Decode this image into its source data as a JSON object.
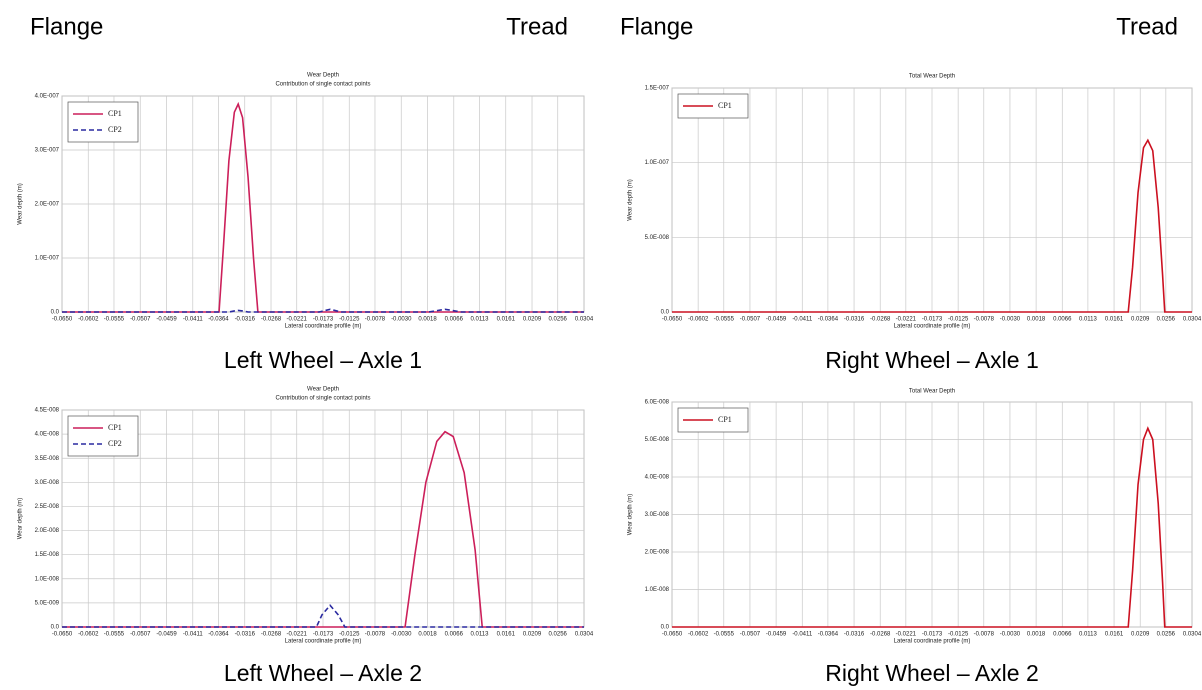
{
  "header_labels": [
    "Flange",
    "Tread",
    "Flange",
    "Tread"
  ],
  "chart_data": [
    {
      "type": "line",
      "title": "Wear Depth",
      "subtitle": "Contribution of single contact points",
      "caption": "Left Wheel – Axle 1",
      "xlabel": "Lateral coordinate profile (m)",
      "ylabel": "Wear depth (m)",
      "grid": true,
      "legend": "upper left",
      "x": [
        -0.065,
        -0.0363,
        -0.0355,
        -0.0345,
        -0.0335,
        -0.0328,
        -0.032,
        -0.031,
        -0.03,
        -0.0292,
        -0.018,
        -0.016,
        -0.014,
        0.002,
        0.005,
        0.008,
        0.0304
      ],
      "series": [
        {
          "name": "CP1",
          "color": "#cc1f5a",
          "style": "solid",
          "values": [
            0,
            0,
            1.2e-07,
            2.8e-07,
            3.7e-07,
            3.85e-07,
            3.6e-07,
            2.5e-07,
            1e-07,
            0,
            0,
            0,
            0,
            0,
            0,
            0,
            0
          ]
        },
        {
          "name": "CP2",
          "color": "#2a2aa0",
          "style": "dashed",
          "values": [
            0,
            0,
            0,
            0,
            2e-09,
            3e-09,
            2e-09,
            0,
            0,
            0,
            0,
            5e-09,
            0,
            0,
            5e-09,
            0,
            0
          ]
        }
      ],
      "xlim": [
        -0.065,
        0.0304
      ],
      "xticks": [
        {
          "value": -0.065,
          "label": "-0.0650"
        },
        -0.0602,
        -0.0555,
        -0.0507,
        -0.0459,
        -0.0411,
        -0.0364,
        -0.0316,
        -0.0268,
        -0.0221,
        -0.0173,
        -0.0125,
        -0.0078,
        {
          "value": -0.003,
          "label": "-0.0030"
        },
        0.0018,
        0.0066,
        0.0113,
        0.0161,
        0.0209,
        0.0256,
        0.0304
      ],
      "ylim": [
        0,
        4e-07
      ],
      "yticks": [
        {
          "value": 0,
          "label": "0.0"
        },
        {
          "value": 1e-07,
          "label": "1.0E-007"
        },
        {
          "value": 2e-07,
          "label": "2.0E-007"
        },
        {
          "value": 3e-07,
          "label": "3.0E-007"
        },
        {
          "value": 4e-07,
          "label": "4.0E-007"
        }
      ]
    },
    {
      "type": "line",
      "title": "Total Wear Depth",
      "caption": "Right Wheel – Axle 1",
      "xlabel": "Lateral coordinate profile (m)",
      "ylabel": "Wear depth (m)",
      "grid": true,
      "legend": "upper left",
      "x": [
        -0.065,
        0.0187,
        0.0195,
        0.0205,
        0.0215,
        0.0223,
        0.0232,
        0.0242,
        0.025,
        0.0254,
        0.0304
      ],
      "series": [
        {
          "name": "CP1",
          "color": "#cc1020",
          "style": "solid",
          "values": [
            0,
            0,
            3e-08,
            8e-08,
            1.1e-07,
            1.15e-07,
            1.08e-07,
            7e-08,
            2.5e-08,
            0,
            0
          ]
        }
      ],
      "xlim": [
        -0.065,
        0.0304
      ],
      "xticks": [
        {
          "value": -0.065,
          "label": "-0.0650"
        },
        -0.0602,
        -0.0555,
        -0.0507,
        -0.0459,
        -0.0411,
        -0.0364,
        -0.0316,
        -0.0268,
        -0.0221,
        -0.0173,
        -0.0125,
        -0.0078,
        {
          "value": -0.003,
          "label": "-0.0030"
        },
        0.0018,
        0.0066,
        0.0113,
        0.0161,
        0.0209,
        0.0256,
        0.0304
      ],
      "ylim": [
        0,
        1.5e-07
      ],
      "yticks": [
        {
          "value": 0,
          "label": "0.0"
        },
        {
          "value": 5e-08,
          "label": "5.0E-008"
        },
        {
          "value": 1e-07,
          "label": "1.0E-007"
        },
        {
          "value": 1.5e-07,
          "label": "1.5E-007"
        }
      ]
    },
    {
      "type": "line",
      "title": "Wear Depth",
      "subtitle": "Contribution of single contact points",
      "caption": "Left Wheel – Axle 2",
      "xlabel": "Lateral coordinate profile (m)",
      "ylabel": "Wear depth (m)",
      "grid": true,
      "legend": "upper left",
      "x": [
        -0.065,
        -0.0185,
        -0.0175,
        -0.016,
        -0.0145,
        -0.0133,
        -0.0023,
        -0.0005,
        0.0015,
        0.0035,
        0.005,
        0.0065,
        0.0085,
        0.0105,
        0.0118,
        0.0304
      ],
      "series": [
        {
          "name": "CP1",
          "color": "#cc1f5a",
          "style": "solid",
          "values": [
            0,
            0,
            0,
            0,
            0,
            0,
            0,
            1.5e-08,
            3e-08,
            3.85e-08,
            4.05e-08,
            3.95e-08,
            3.2e-08,
            1.6e-08,
            0,
            0
          ]
        },
        {
          "name": "CP2",
          "color": "#2a2aa0",
          "style": "dashed",
          "values": [
            0,
            0,
            2.5e-09,
            4.5e-09,
            2.5e-09,
            0,
            0,
            0,
            0,
            0,
            0,
            0,
            0,
            0,
            0,
            0
          ]
        }
      ],
      "xlim": [
        -0.065,
        0.0304
      ],
      "xticks": [
        {
          "value": -0.065,
          "label": "-0.0650"
        },
        -0.0602,
        -0.0555,
        -0.0507,
        -0.0459,
        -0.0411,
        -0.0364,
        -0.0316,
        -0.0268,
        -0.0221,
        -0.0173,
        -0.0125,
        -0.0078,
        {
          "value": -0.003,
          "label": "-0.0030"
        },
        0.0018,
        0.0066,
        0.0113,
        0.0161,
        0.0209,
        0.0256,
        0.0304
      ],
      "ylim": [
        0,
        4.5e-08
      ],
      "yticks": [
        {
          "value": 0,
          "label": "0.0"
        },
        {
          "value": 5e-09,
          "label": "5.0E-009"
        },
        {
          "value": 1e-08,
          "label": "1.0E-008"
        },
        {
          "value": 1.5e-08,
          "label": "1.5E-008"
        },
        {
          "value": 2e-08,
          "label": "2.0E-008"
        },
        {
          "value": 2.5e-08,
          "label": "2.5E-008"
        },
        {
          "value": 3e-08,
          "label": "3.0E-008"
        },
        {
          "value": 3.5e-08,
          "label": "3.5E-008"
        },
        {
          "value": 4e-08,
          "label": "4.0E-008"
        },
        {
          "value": 4.5e-08,
          "label": "4.5E-008"
        }
      ]
    },
    {
      "type": "line",
      "title": "Total Wear Depth",
      "caption": "Right Wheel – Axle 2",
      "xlabel": "Lateral coordinate profile (m)",
      "ylabel": "Wear depth (m)",
      "grid": true,
      "legend": "upper left",
      "x": [
        -0.065,
        0.0187,
        0.0195,
        0.0205,
        0.0215,
        0.0223,
        0.0232,
        0.0242,
        0.025,
        0.0254,
        0.0304
      ],
      "series": [
        {
          "name": "CP1",
          "color": "#cc1020",
          "style": "solid",
          "values": [
            0,
            0,
            1.5e-08,
            3.8e-08,
            5e-08,
            5.3e-08,
            5e-08,
            3.3e-08,
            1.2e-08,
            0,
            0
          ]
        }
      ],
      "xlim": [
        -0.065,
        0.0304
      ],
      "xticks": [
        {
          "value": -0.065,
          "label": "-0.0650"
        },
        -0.0602,
        -0.0555,
        -0.0507,
        -0.0459,
        -0.0411,
        -0.0364,
        -0.0316,
        -0.0268,
        -0.0221,
        -0.0173,
        -0.0125,
        -0.0078,
        {
          "value": -0.003,
          "label": "-0.0030"
        },
        0.0018,
        0.0066,
        0.0113,
        0.0161,
        0.0209,
        0.0256,
        0.0304
      ],
      "ylim": [
        0,
        6e-08
      ],
      "yticks": [
        {
          "value": 0,
          "label": "0.0"
        },
        {
          "value": 1e-08,
          "label": "1.0E-008"
        },
        {
          "value": 2e-08,
          "label": "2.0E-008"
        },
        {
          "value": 3e-08,
          "label": "3.0E-008"
        },
        {
          "value": 4e-08,
          "label": "4.0E-008"
        },
        {
          "value": 5e-08,
          "label": "5.0E-008"
        },
        {
          "value": 6e-08,
          "label": "6.0E-008"
        }
      ]
    }
  ]
}
